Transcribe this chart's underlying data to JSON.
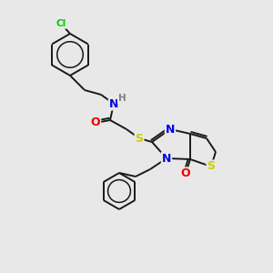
{
  "bg_color": "#e8e8e8",
  "bond_color": "#1a1a1a",
  "atom_colors": {
    "N": "#0000ee",
    "O": "#ee0000",
    "S": "#cccc00",
    "Cl": "#00cc00",
    "H": "#808080",
    "C": "#1a1a1a"
  },
  "figsize": [
    3.0,
    3.0
  ],
  "dpi": 100
}
